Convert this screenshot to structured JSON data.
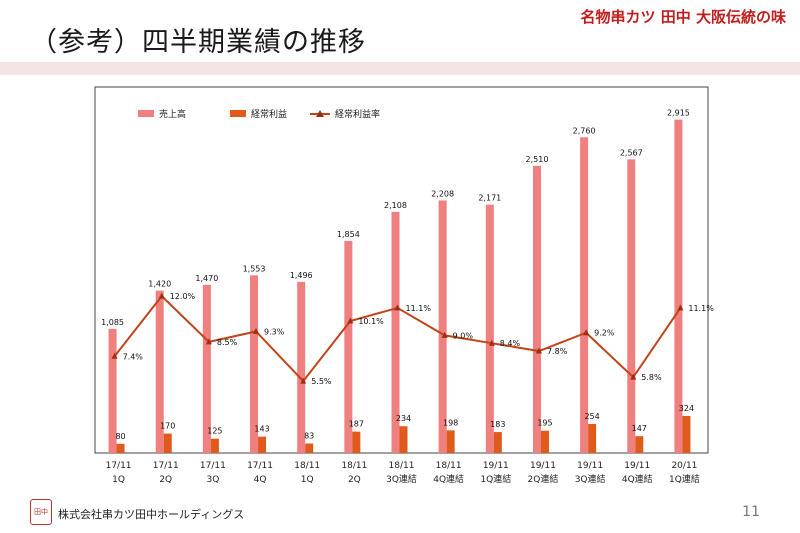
{
  "page": {
    "title": "（参考）四半期業績の推移",
    "brand": "名物串カツ 田中 大阪伝統の味",
    "company": "株式会社串カツ田中ホールディングス",
    "page_number": "11",
    "logo_text": "田中"
  },
  "colors": {
    "revenue": "#f07f7f",
    "profit": "#e05a1c",
    "margin_line": "#c1441a",
    "margin_marker": "#9b2f12",
    "axis": "#444444",
    "band": "#f6e4e4"
  },
  "chart_data": {
    "type": "bar",
    "title": "",
    "categories": [
      [
        "17/11",
        "1Q"
      ],
      [
        "17/11",
        "2Q"
      ],
      [
        "17/11",
        "3Q"
      ],
      [
        "17/11",
        "4Q"
      ],
      [
        "18/11",
        "1Q"
      ],
      [
        "18/11",
        "2Q"
      ],
      [
        "18/11",
        "3Q連結"
      ],
      [
        "18/11",
        "4Q連結"
      ],
      [
        "19/11",
        "1Q連結"
      ],
      [
        "19/11",
        "2Q連結"
      ],
      [
        "19/11",
        "3Q連結"
      ],
      [
        "19/11",
        "4Q連結"
      ],
      [
        "20/11",
        "1Q連結"
      ]
    ],
    "series": [
      {
        "name": "売上高",
        "kind": "bar",
        "values": [
          1085,
          1420,
          1470,
          1553,
          1496,
          1854,
          2108,
          2208,
          2171,
          2510,
          2760,
          2567,
          2915
        ],
        "labels": [
          "1,085",
          "1,420",
          "1,470",
          "1,553",
          "1,496",
          "1,854",
          "2,108",
          "2,208",
          "2,171",
          "2,510",
          "2,760",
          "2,567",
          "2,915"
        ]
      },
      {
        "name": "経常利益",
        "kind": "bar",
        "values": [
          80,
          170,
          125,
          143,
          83,
          187,
          234,
          198,
          183,
          195,
          254,
          147,
          324
        ],
        "labels": [
          "80",
          "170",
          "125",
          "143",
          "83",
          "187",
          "234",
          "198",
          "183",
          "195",
          "254",
          "147",
          "324"
        ]
      },
      {
        "name": "経常利益率",
        "kind": "line",
        "values": [
          7.4,
          12.0,
          8.5,
          9.3,
          5.5,
          10.1,
          11.1,
          9.0,
          8.4,
          7.8,
          9.2,
          5.8,
          11.1
        ],
        "labels": [
          "7.4%",
          "12.0%",
          "8.5%",
          "9.3%",
          "5.5%",
          "10.1%",
          "11.1%",
          "9.0%",
          "8.4%",
          "7.8%",
          "9.2%",
          "5.8%",
          "11.1%"
        ]
      }
    ],
    "ylim": [
      0,
      3200
    ],
    "y2lim": [
      0,
      28
    ],
    "legend": "top-left",
    "grid": false
  }
}
